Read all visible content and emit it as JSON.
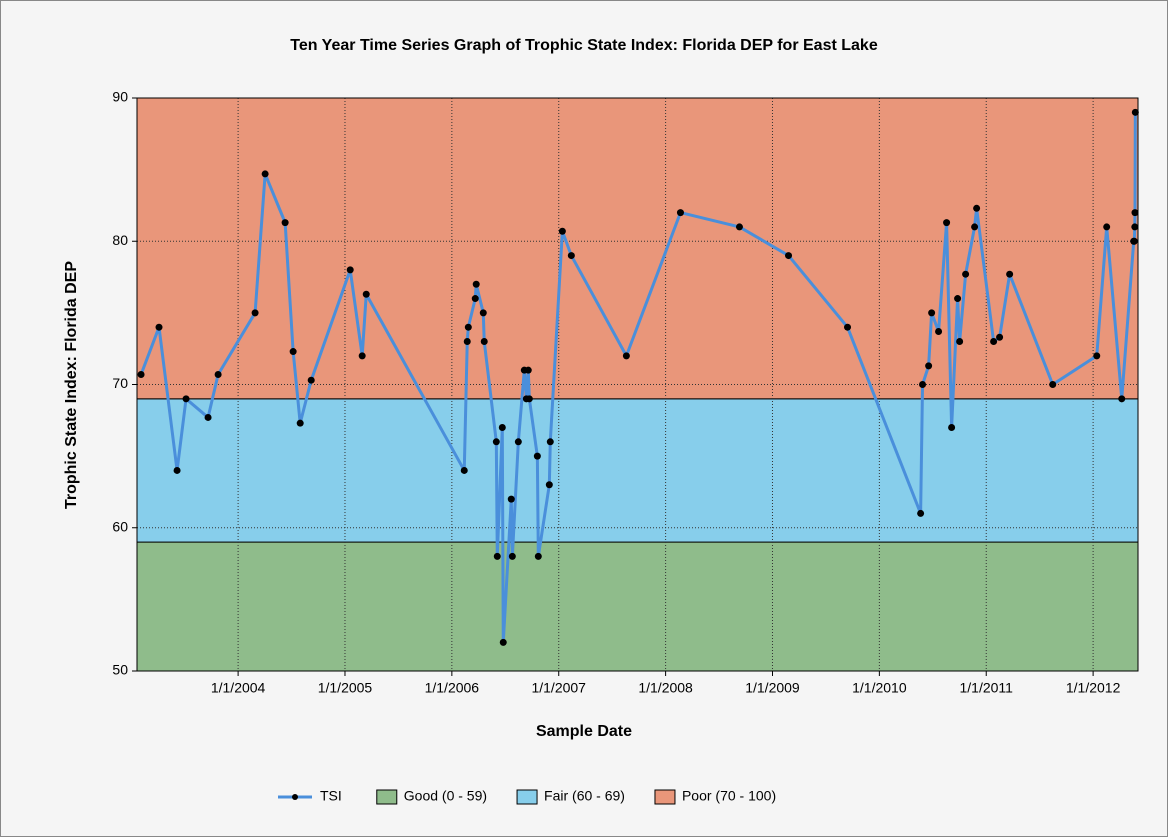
{
  "chart_data": {
    "type": "line",
    "title": "Ten Year Time Series Graph of Trophic State Index: Florida DEP for East Lake",
    "xlabel": "Sample Date",
    "ylabel": "Trophic State Index: Florida DEP",
    "xlim": [
      2003.054,
      2012.42
    ],
    "xticks": [
      {
        "value": 2004,
        "label": "1/1/2004"
      },
      {
        "value": 2005,
        "label": "1/1/2005"
      },
      {
        "value": 2006,
        "label": "1/1/2006"
      },
      {
        "value": 2007,
        "label": "1/1/2007"
      },
      {
        "value": 2008,
        "label": "1/1/2008"
      },
      {
        "value": 2009,
        "label": "1/1/2009"
      },
      {
        "value": 2010,
        "label": "1/1/2010"
      },
      {
        "value": 2011,
        "label": "1/1/2011"
      },
      {
        "value": 2012,
        "label": "1/1/2012"
      }
    ],
    "ylim": [
      50,
      90
    ],
    "yticks": [
      50,
      60,
      70,
      80,
      90
    ],
    "grid": true,
    "bands": [
      {
        "name": "Good (0 - 59)",
        "color": "#8fbc8b",
        "range": [
          0,
          59
        ]
      },
      {
        "name": "Fair (60 - 69)",
        "color": "#87ceeb",
        "range": [
          59,
          69
        ]
      },
      {
        "name": "Poor (70 - 100)",
        "color": "#e9967a",
        "range": [
          69,
          100
        ]
      }
    ],
    "series": [
      {
        "name": "TSI",
        "color": "#4a8fdb",
        "x": [
          2003.092,
          2003.26,
          2003.429,
          2003.513,
          2003.719,
          2003.813,
          2004.159,
          2004.253,
          2004.44,
          2004.515,
          2004.581,
          2004.684,
          2005.049,
          2005.161,
          2005.199,
          2006.116,
          2006.144,
          2006.154,
          2006.219,
          2006.228,
          2006.294,
          2006.303,
          2006.416,
          2006.425,
          2006.472,
          2006.481,
          2006.556,
          2006.566,
          2006.622,
          2006.678,
          2006.697,
          2006.715,
          2006.725,
          2006.8,
          2006.809,
          2006.912,
          2006.921,
          2007.034,
          2007.118,
          2007.633,
          2008.139,
          2008.691,
          2009.15,
          2009.702,
          2010.386,
          2010.404,
          2010.461,
          2010.489,
          2010.554,
          2010.629,
          2010.676,
          2010.732,
          2010.751,
          2010.807,
          2010.891,
          2010.91,
          2011.069,
          2011.125,
          2011.219,
          2011.622,
          2012.034,
          2012.127,
          2012.268,
          2012.38,
          2012.385,
          2012.39,
          2012.392,
          2012.395
        ],
        "values": [
          70.7,
          74,
          64,
          69,
          67.7,
          70.7,
          75,
          84.7,
          81.3,
          72.3,
          67.3,
          70.3,
          78,
          72,
          76.3,
          64,
          73,
          74,
          76,
          77,
          75,
          73,
          66,
          58,
          67,
          52,
          62,
          58,
          66,
          71,
          69,
          71,
          69,
          65,
          58,
          63,
          66,
          80.7,
          79,
          72,
          82,
          81,
          79,
          74,
          61,
          70,
          71.3,
          75,
          73.7,
          81.3,
          67,
          76,
          73,
          77.7,
          81,
          82.3,
          73,
          73.3,
          77.7,
          70,
          72,
          81,
          69,
          80,
          80,
          81,
          82,
          89
        ]
      }
    ]
  }
}
